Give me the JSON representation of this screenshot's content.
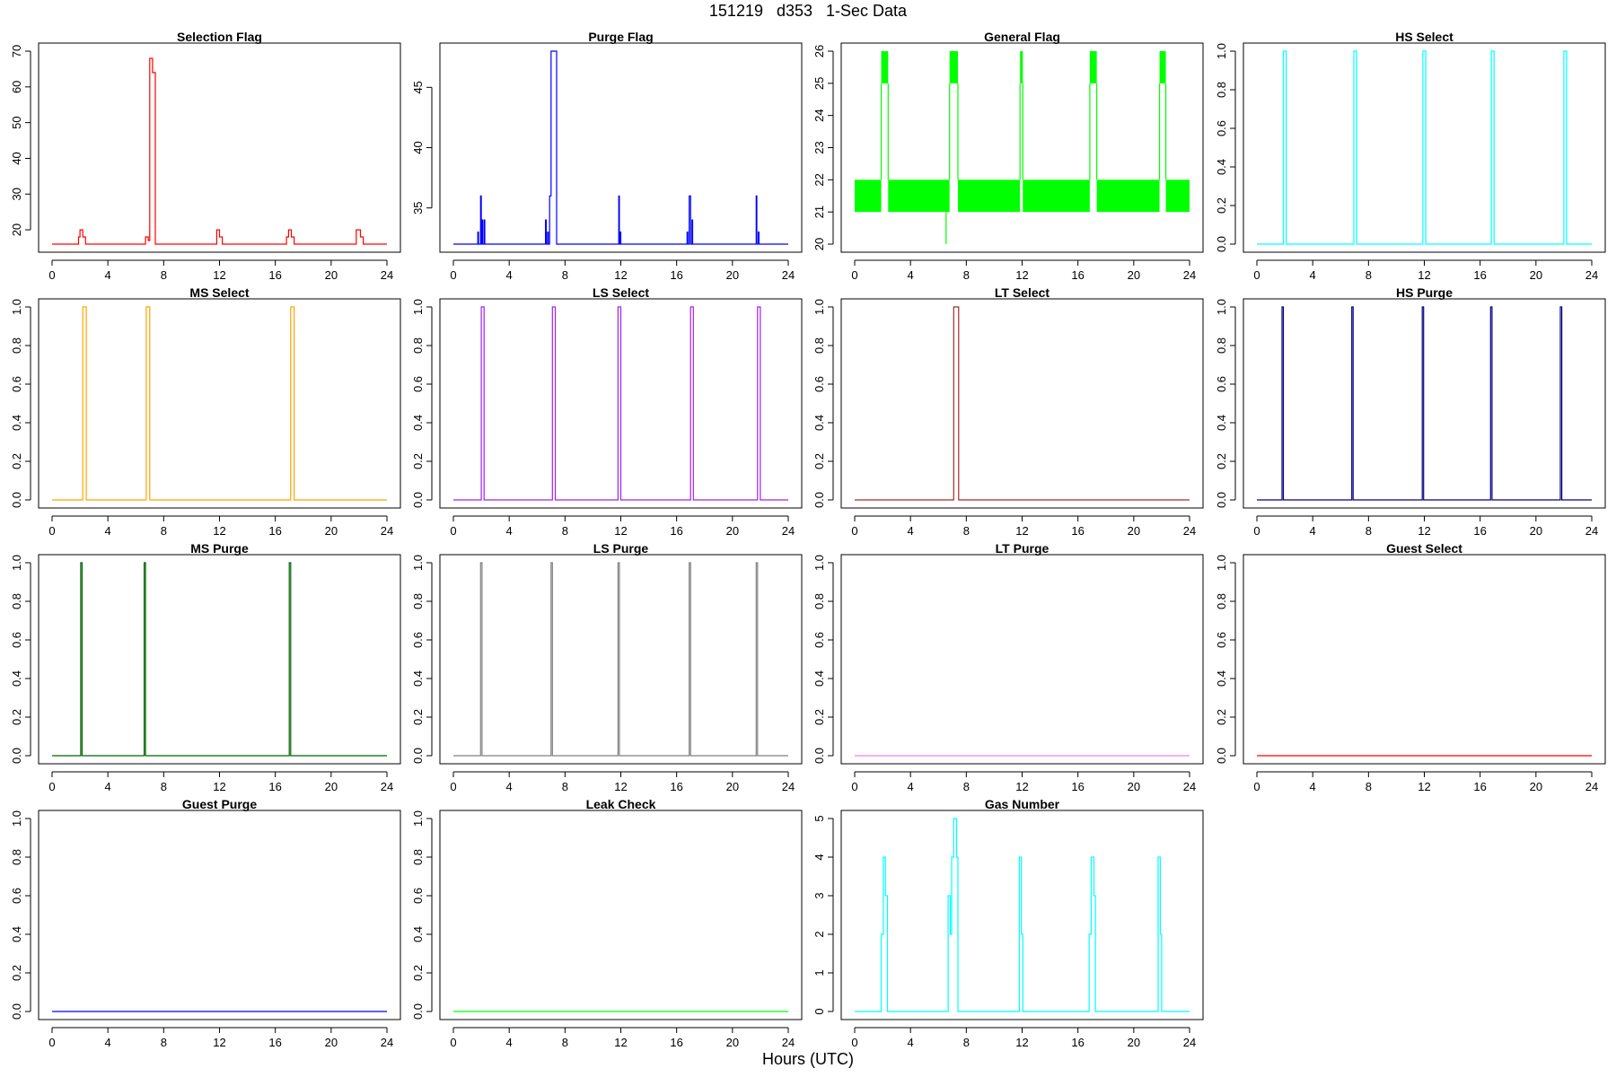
{
  "page": {
    "title": "151219   d353   1-Sec Data",
    "xlabel": "Hours (UTC)"
  },
  "x_axis": {
    "range": [
      0,
      24
    ],
    "ticks": [
      0,
      4,
      8,
      12,
      16,
      20,
      24
    ]
  },
  "chart_data": [
    {
      "type": "line",
      "title": "Selection Flag",
      "color": "#ff0000",
      "ylim": [
        16,
        70
      ],
      "yticks": [
        20,
        30,
        40,
        50,
        60,
        70
      ],
      "x": [
        0,
        1.9,
        1.9,
        2.0,
        2.0,
        2.2,
        2.2,
        2.4,
        2.4,
        6.7,
        6.7,
        6.9,
        6.9,
        7.0,
        7.0,
        7.2,
        7.2,
        7.4,
        7.4,
        11.8,
        11.8,
        12.0,
        12.0,
        12.2,
        12.2,
        16.8,
        16.8,
        16.95,
        16.95,
        17.15,
        17.15,
        17.35,
        17.35,
        21.8,
        21.8,
        22.1,
        22.1,
        22.3,
        22.3,
        24
      ],
      "y": [
        16,
        16,
        18,
        18,
        20,
        20,
        18,
        18,
        16,
        16,
        18,
        18,
        17,
        17,
        68,
        68,
        64,
        64,
        16,
        16,
        20,
        20,
        18,
        18,
        16,
        16,
        18,
        18,
        20,
        20,
        18,
        18,
        16,
        16,
        20,
        20,
        18,
        18,
        16,
        16
      ]
    },
    {
      "type": "line",
      "title": "Purge Flag",
      "color": "#0000ff",
      "ylim": [
        32,
        48
      ],
      "yticks": [
        35,
        40,
        45
      ],
      "x": [
        0,
        1.75,
        1.75,
        1.8,
        1.8,
        1.95,
        1.95,
        2.0,
        2.0,
        2.05,
        2.05,
        2.1,
        2.1,
        2.2,
        2.2,
        2.25,
        2.25,
        6.6,
        6.6,
        6.65,
        6.65,
        6.75,
        6.75,
        6.8,
        6.8,
        6.9,
        6.9,
        7.0,
        7.0,
        7.4,
        7.4,
        11.85,
        11.85,
        11.9,
        11.9,
        11.95,
        11.95,
        12.0,
        12.0,
        16.75,
        16.75,
        16.8,
        16.8,
        16.9,
        16.9,
        17.0,
        17.0,
        17.1,
        17.1,
        17.15,
        17.15,
        21.7,
        21.7,
        21.75,
        21.75,
        21.85,
        21.85,
        21.9,
        21.9,
        24
      ],
      "y": [
        32,
        32,
        33,
        33,
        32,
        32,
        36,
        36,
        32,
        32,
        34,
        34,
        32,
        32,
        34,
        34,
        32,
        32,
        34,
        34,
        32,
        32,
        33,
        33,
        32,
        32,
        36,
        36,
        48,
        48,
        32,
        32,
        36,
        36,
        32,
        32,
        33,
        33,
        32,
        32,
        33,
        33,
        32,
        32,
        36,
        36,
        32,
        32,
        34,
        34,
        32,
        32,
        36,
        36,
        32,
        32,
        33,
        33,
        32,
        32
      ]
    },
    {
      "type": "line",
      "title": "General Flag",
      "color": "#00ff00",
      "ylim": [
        20,
        26
      ],
      "yticks": [
        20,
        21,
        22,
        23,
        24,
        25,
        26
      ],
      "band": {
        "low": 21,
        "high": 22,
        "gaps": [
          [
            1.9,
            2.4
          ],
          [
            6.8,
            7.4
          ],
          [
            11.85,
            12.05
          ],
          [
            16.85,
            17.35
          ],
          [
            21.85,
            22.3
          ]
        ]
      },
      "spikes": [
        {
          "start": 1.9,
          "end": 2.4,
          "top": 26,
          "inner": 25
        },
        {
          "start": 6.8,
          "end": 7.4,
          "top": 26,
          "inner": 25
        },
        {
          "start": 11.85,
          "end": 12.05,
          "top": 26,
          "inner": 25
        },
        {
          "start": 16.85,
          "end": 17.35,
          "top": 26,
          "inner": 25
        },
        {
          "start": 21.85,
          "end": 22.3,
          "top": 26,
          "inner": 25
        }
      ],
      "dip": {
        "x": 6.55,
        "y": 20
      }
    },
    {
      "type": "line",
      "title": "HS Select",
      "color": "#00ffff",
      "ylim": [
        0,
        1
      ],
      "yticks": [
        0.0,
        0.2,
        0.4,
        0.6,
        0.8,
        1.0
      ],
      "pulses": [
        [
          1.9,
          2.1
        ],
        [
          6.95,
          7.15
        ],
        [
          11.9,
          12.1
        ],
        [
          16.8,
          17.0
        ],
        [
          22.0,
          22.2
        ]
      ]
    },
    {
      "type": "line",
      "title": "MS Select",
      "color": "#ffa500",
      "ylim": [
        0,
        1
      ],
      "yticks": [
        0.0,
        0.2,
        0.4,
        0.6,
        0.8,
        1.0
      ],
      "pulses": [
        [
          2.2,
          2.45
        ],
        [
          6.75,
          7.0
        ],
        [
          17.1,
          17.35
        ]
      ]
    },
    {
      "type": "line",
      "title": "LS Select",
      "color": "#a020f0",
      "ylim": [
        0,
        1
      ],
      "yticks": [
        0.0,
        0.2,
        0.4,
        0.6,
        0.8,
        1.0
      ],
      "pulses": [
        [
          2.0,
          2.2
        ],
        [
          7.1,
          7.3
        ],
        [
          11.8,
          12.0
        ],
        [
          17.0,
          17.2
        ],
        [
          21.8,
          22.0
        ]
      ]
    },
    {
      "type": "line",
      "title": "LT Select",
      "color": "#a52a2a",
      "ylim": [
        0,
        1
      ],
      "yticks": [
        0.0,
        0.2,
        0.4,
        0.6,
        0.8,
        1.0
      ],
      "pulses": [
        [
          7.1,
          7.45
        ]
      ]
    },
    {
      "type": "line",
      "title": "HS Purge",
      "color": "#000080",
      "ylim": [
        0,
        1
      ],
      "yticks": [
        0.0,
        0.2,
        0.4,
        0.6,
        0.8,
        1.0
      ],
      "pulses": [
        [
          1.8,
          1.9
        ],
        [
          6.8,
          6.9
        ],
        [
          11.85,
          11.95
        ],
        [
          16.75,
          16.85
        ],
        [
          21.75,
          21.85
        ]
      ]
    },
    {
      "type": "line",
      "title": "MS Purge",
      "color": "#006400",
      "ylim": [
        0,
        1
      ],
      "yticks": [
        0.0,
        0.2,
        0.4,
        0.6,
        0.8,
        1.0
      ],
      "pulses": [
        [
          2.05,
          2.15
        ],
        [
          6.6,
          6.7
        ],
        [
          17.0,
          17.1
        ]
      ]
    },
    {
      "type": "line",
      "title": "LS Purge",
      "color": "#808080",
      "ylim": [
        0,
        1
      ],
      "yticks": [
        0.0,
        0.2,
        0.4,
        0.6,
        0.8,
        1.0
      ],
      "pulses": [
        [
          1.95,
          2.05
        ],
        [
          7.0,
          7.1
        ],
        [
          11.8,
          11.9
        ],
        [
          16.9,
          17.0
        ],
        [
          21.7,
          21.8
        ]
      ]
    },
    {
      "type": "line",
      "title": "LT Purge",
      "color": "#ee82ee",
      "ylim": [
        0,
        1
      ],
      "yticks": [
        0.0,
        0.2,
        0.4,
        0.6,
        0.8,
        1.0
      ],
      "pulses": []
    },
    {
      "type": "line",
      "title": "Guest Select",
      "color": "#ff0000",
      "ylim": [
        0,
        1
      ],
      "yticks": [
        0.0,
        0.2,
        0.4,
        0.6,
        0.8,
        1.0
      ],
      "pulses": []
    },
    {
      "type": "line",
      "title": "Guest Purge",
      "color": "#0000ff",
      "ylim": [
        0,
        1
      ],
      "yticks": [
        0.0,
        0.2,
        0.4,
        0.6,
        0.8,
        1.0
      ],
      "pulses": []
    },
    {
      "type": "line",
      "title": "Leak Check",
      "color": "#00ff00",
      "ylim": [
        0,
        1
      ],
      "yticks": [
        0.0,
        0.2,
        0.4,
        0.6,
        0.8,
        1.0
      ],
      "pulses": []
    },
    {
      "type": "line",
      "title": "Gas Number",
      "color": "#00ffff",
      "ylim": [
        0,
        5
      ],
      "yticks": [
        0,
        1,
        2,
        3,
        4,
        5
      ],
      "x": [
        0,
        1.9,
        1.9,
        2.05,
        2.05,
        2.2,
        2.2,
        2.35,
        2.35,
        6.7,
        6.7,
        6.85,
        6.85,
        6.95,
        6.95,
        7.1,
        7.1,
        7.3,
        7.3,
        7.4,
        7.4,
        11.8,
        11.8,
        11.95,
        11.95,
        12.05,
        12.05,
        16.8,
        16.8,
        16.95,
        16.95,
        17.15,
        17.15,
        17.25,
        17.25,
        21.75,
        21.75,
        21.9,
        21.9,
        22.0,
        22.0,
        24
      ],
      "y": [
        0,
        0,
        2,
        2,
        4,
        4,
        3,
        3,
        0,
        0,
        3,
        3,
        2,
        2,
        4,
        4,
        5,
        5,
        4,
        4,
        0,
        0,
        4,
        4,
        2,
        2,
        0,
        0,
        2,
        2,
        4,
        4,
        3,
        3,
        0,
        0,
        4,
        4,
        2,
        2,
        0,
        0
      ]
    }
  ]
}
